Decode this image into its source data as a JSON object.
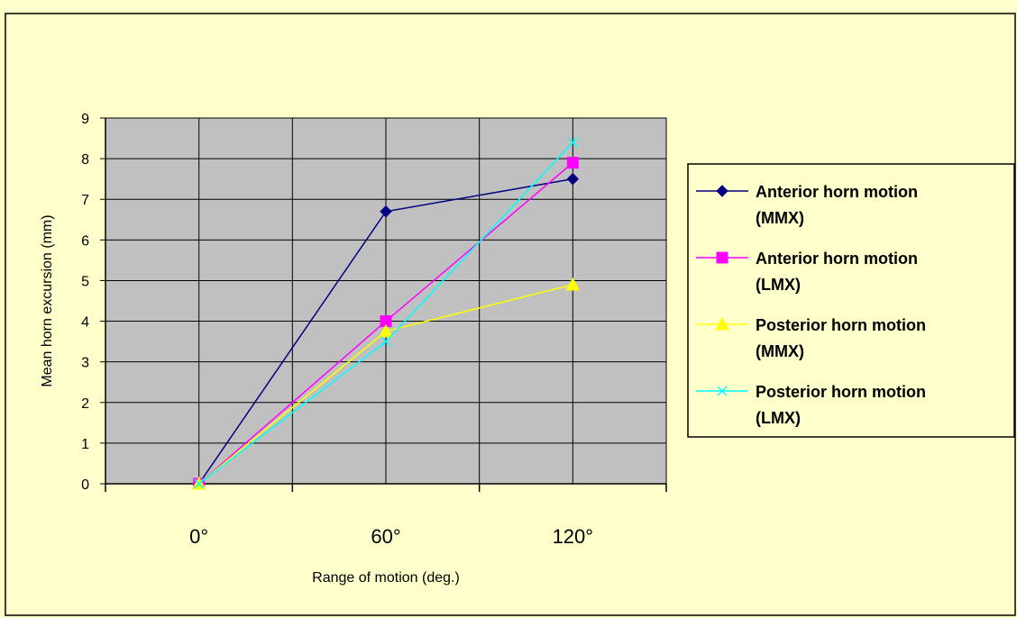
{
  "chart_data": {
    "type": "line",
    "title": "",
    "xlabel": "Range of motion (deg.)",
    "ylabel": "Mean horn excursion (mm)",
    "categories": [
      "0°",
      "60°",
      "120°"
    ],
    "ylim": [
      0,
      9
    ],
    "yticks": [
      "0",
      "1",
      "2",
      "3",
      "4",
      "5",
      "6",
      "7",
      "8",
      "9"
    ],
    "grid": true,
    "legend_position": "right",
    "series": [
      {
        "name_line1": "Anterior horn motion",
        "name_line2": "(MMX)",
        "color": "#000080",
        "marker": "diamond",
        "values": [
          0,
          6.7,
          7.5
        ]
      },
      {
        "name_line1": "Anterior horn motion",
        "name_line2": "(LMX)",
        "color": "#ff00ff",
        "marker": "square",
        "values": [
          0,
          4.0,
          7.9
        ]
      },
      {
        "name_line1": "Posterior horn motion",
        "name_line2": "(MMX)",
        "color": "#ffff00",
        "marker": "triangle",
        "values": [
          0,
          3.75,
          4.9
        ]
      },
      {
        "name_line1": "Posterior horn motion",
        "name_line2": "(LMX)",
        "color": "#00ffff",
        "marker": "x",
        "values": [
          0,
          3.5,
          8.4
        ]
      }
    ]
  },
  "colors": {
    "page_background": "#ffffcc",
    "plot_background": "#c0c0c0",
    "grid": "#000000"
  }
}
